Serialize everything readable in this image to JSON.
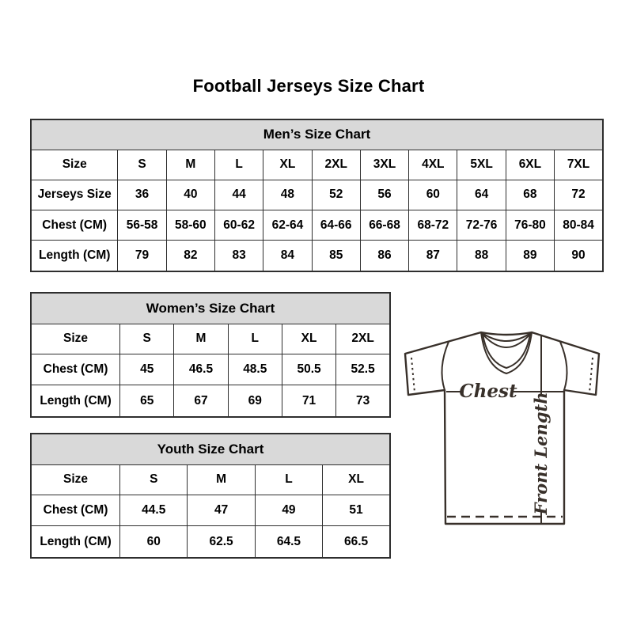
{
  "title": "Football Jerseys Size Chart",
  "chart_data": [
    {
      "type": "table",
      "id": "men",
      "title": "Men’s Size Chart",
      "columns": [
        "Size",
        "S",
        "M",
        "L",
        "XL",
        "2XL",
        "3XL",
        "4XL",
        "5XL",
        "6XL",
        "7XL"
      ],
      "rows": [
        [
          "Jerseys Size",
          "36",
          "40",
          "44",
          "48",
          "52",
          "56",
          "60",
          "64",
          "68",
          "72"
        ],
        [
          "Chest (CM)",
          "56-58",
          "58-60",
          "60-62",
          "62-64",
          "64-66",
          "66-68",
          "68-72",
          "72-76",
          "76-80",
          "80-84"
        ],
        [
          "Length (CM)",
          "79",
          "82",
          "83",
          "84",
          "85",
          "86",
          "87",
          "88",
          "89",
          "90"
        ]
      ]
    },
    {
      "type": "table",
      "id": "women",
      "title": "Women’s Size Chart",
      "columns": [
        "Size",
        "S",
        "M",
        "L",
        "XL",
        "2XL"
      ],
      "rows": [
        [
          "Chest (CM)",
          "45",
          "46.5",
          "48.5",
          "50.5",
          "52.5"
        ],
        [
          "Length (CM)",
          "65",
          "67",
          "69",
          "71",
          "73"
        ]
      ]
    },
    {
      "type": "table",
      "id": "youth",
      "title": "Youth Size Chart",
      "columns": [
        "Size",
        "S",
        "M",
        "L",
        "XL"
      ],
      "rows": [
        [
          "Chest (CM)",
          "44.5",
          "47",
          "49",
          "51"
        ],
        [
          "Length (CM)",
          "60",
          "62.5",
          "64.5",
          "66.5"
        ]
      ]
    }
  ],
  "diagram": {
    "chest_label": "Chest",
    "front_length_label": "Front Length"
  },
  "colors": {
    "table_header_bg": "#d9d9d9",
    "table_border": "#2e2e2e",
    "text": "#000000",
    "diagram_stroke": "#38302a"
  }
}
